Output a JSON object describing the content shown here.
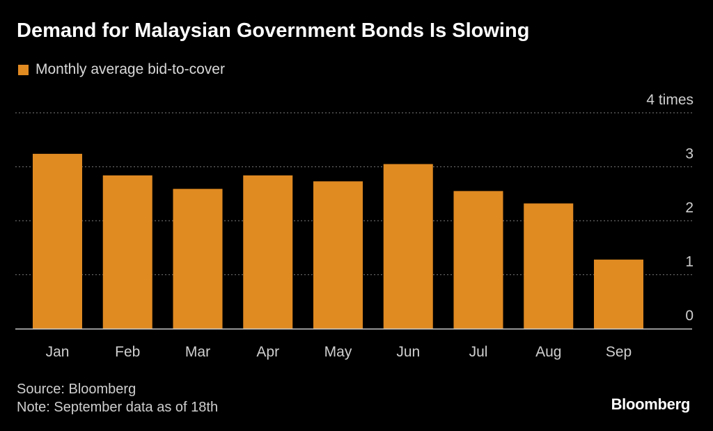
{
  "header": {
    "title": "Demand for Malaysian Government Bonds Is Slowing"
  },
  "legend": {
    "label": "Monthly average bid-to-cover"
  },
  "footer": {
    "source": "Source: Bloomberg",
    "note": "Note: September data as of 18th",
    "brand": "Bloomberg"
  },
  "colors": {
    "bar": "#E08A22",
    "grid": "#666666",
    "axis": "#cccccc",
    "tick_text": "#cfcfcf"
  },
  "chart_data": {
    "type": "bar",
    "title": "Demand for Malaysian Government Bonds Is Slowing",
    "xlabel": "",
    "ylabel": "",
    "categories": [
      "Jan",
      "Feb",
      "Mar",
      "Apr",
      "May",
      "Jun",
      "Jul",
      "Aug",
      "Sep"
    ],
    "series": [
      {
        "name": "Monthly average bid-to-cover",
        "values": [
          3.24,
          2.84,
          2.59,
          2.84,
          2.73,
          3.05,
          2.55,
          2.32,
          1.28
        ]
      }
    ],
    "ylim": [
      0,
      4
    ],
    "yticks": [
      0,
      1,
      2,
      3,
      4
    ],
    "ytick_labels": [
      "0",
      "1",
      "2",
      "3",
      "4 times"
    ],
    "grid": true,
    "legend_position": "top-left"
  }
}
